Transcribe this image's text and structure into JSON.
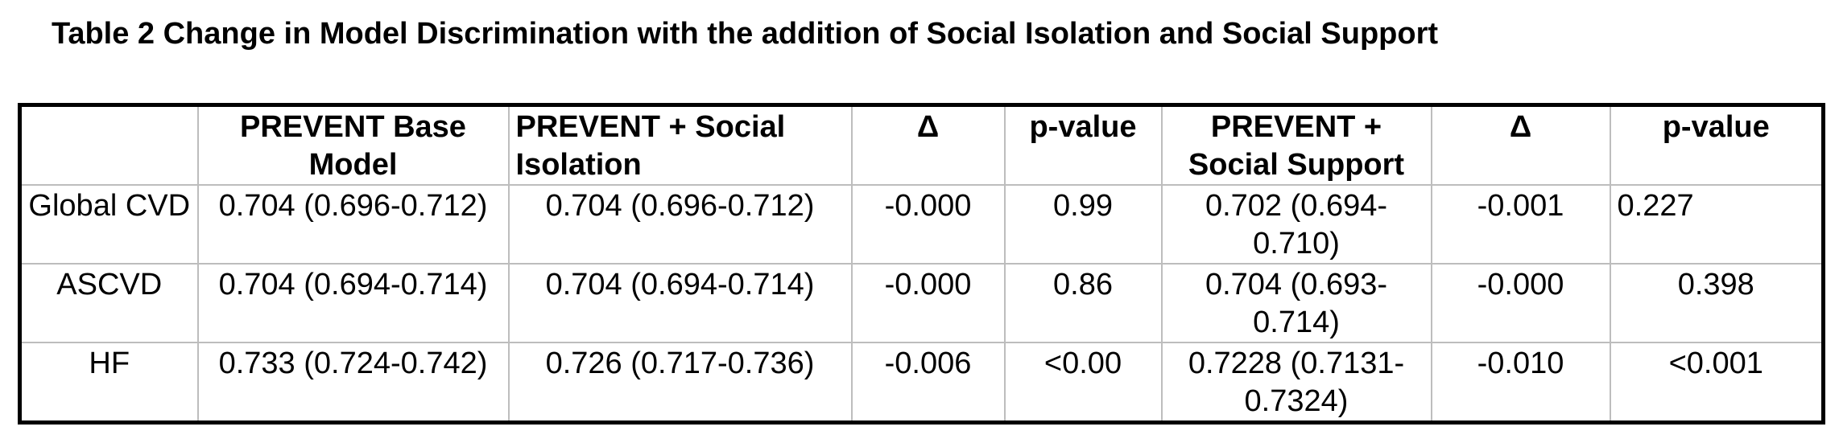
{
  "caption": "Table 2 Change in Model Discrimination with the addition of Social Isolation and Social Support",
  "table": {
    "headers": [
      "",
      "PREVENT Base Model",
      "PREVENT + Social Isolation",
      "Δ",
      "p-value",
      "PREVENT + Social Support",
      "Δ",
      "p-value"
    ],
    "rows": [
      {
        "outcome": "Global CVD",
        "base_model": "0.704 (0.696-0.712)",
        "social_isolation": "0.704 (0.696-0.712)",
        "si_delta": "-0.000",
        "si_p": "0.99",
        "social_support": "0.702 (0.694-0.710)",
        "ss_delta": "-0.001",
        "ss_p": "0.227"
      },
      {
        "outcome": "ASCVD",
        "base_model": "0.704 (0.694-0.714)",
        "social_isolation": "0.704 (0.694-0.714)",
        "si_delta": "-0.000",
        "si_p": "0.86",
        "social_support": "0.704 (0.693-0.714)",
        "ss_delta": "-0.000",
        "ss_p": "0.398"
      },
      {
        "outcome": "HF",
        "base_model": "0.733 (0.724-0.742)",
        "social_isolation": "0.726 (0.717-0.736)",
        "si_delta": "-0.006",
        "si_p": "<0.00",
        "social_support": "0.7228 (0.7131-0.7324)",
        "ss_delta": "-0.010",
        "ss_p": "<0.001"
      }
    ]
  }
}
